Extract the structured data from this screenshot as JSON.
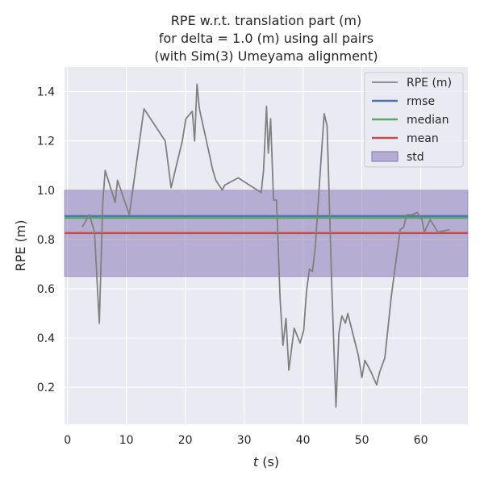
{
  "chart_data": {
    "type": "line",
    "title_lines": [
      "RPE w.r.t. translation part (m)",
      "for delta = 1.0 (m) using all pairs",
      "(with Sim(3) Umeyama alignment)"
    ],
    "xlabel_var": "t",
    "xlabel_unit": " (s)",
    "ylabel": "RPE (m)",
    "xlim": [
      -0.5,
      68
    ],
    "ylim": [
      0.05,
      1.5
    ],
    "xticks": [
      0,
      10,
      20,
      30,
      40,
      50,
      60
    ],
    "yticks": [
      0.2,
      0.4,
      0.6,
      0.8,
      1.0,
      1.2,
      1.4
    ],
    "ytick_labels": [
      "0.2",
      "0.4",
      "0.6",
      "0.8",
      "1.0",
      "1.2",
      "1.4"
    ],
    "grid": true,
    "legend_position": "top-right",
    "series": [
      {
        "name": "RPE (m)",
        "color": "#808080",
        "x": [
          2.5,
          3.7,
          4.6,
          5.4,
          6.0,
          6.4,
          8.1,
          8.5,
          10.5,
          13.0,
          16.6,
          17.6,
          19.5,
          20.1,
          21.2,
          21.6,
          22.0,
          22.4,
          24.7,
          25.2,
          26.3,
          26.7,
          29.0,
          32.9,
          33.3,
          33.8,
          34.1,
          34.5,
          35.0,
          35.5,
          36.1,
          36.6,
          37.1,
          37.6,
          38.5,
          39.5,
          40.1,
          40.6,
          41.1,
          41.6,
          42.1,
          43.0,
          43.6,
          44.1,
          44.9,
          45.6,
          46.1,
          46.6,
          47.2,
          47.6,
          49.4,
          50.0,
          50.5,
          51.6,
          52.5,
          53.0,
          53.9,
          55.0,
          56.5,
          57.1,
          57.6,
          58.5,
          59.4,
          60.2,
          60.6,
          61.6,
          62.9,
          64.9
        ],
        "y": [
          0.85,
          0.9,
          0.83,
          0.46,
          0.95,
          1.08,
          0.95,
          1.04,
          0.9,
          1.33,
          1.2,
          1.01,
          1.2,
          1.29,
          1.32,
          1.2,
          1.43,
          1.33,
          1.08,
          1.04,
          1.0,
          1.02,
          1.05,
          0.99,
          1.08,
          1.34,
          1.15,
          1.29,
          0.96,
          0.96,
          0.56,
          0.37,
          0.48,
          0.27,
          0.44,
          0.38,
          0.43,
          0.59,
          0.68,
          0.67,
          0.77,
          1.1,
          1.31,
          1.26,
          0.6,
          0.12,
          0.42,
          0.49,
          0.46,
          0.5,
          0.33,
          0.24,
          0.31,
          0.26,
          0.21,
          0.26,
          0.32,
          0.57,
          0.84,
          0.85,
          0.9,
          0.9,
          0.91,
          0.88,
          0.83,
          0.88,
          0.83,
          0.84
        ]
      }
    ],
    "stats": [
      {
        "name": "rmse",
        "value": 0.895,
        "color": "#4c72b0"
      },
      {
        "name": "median",
        "value": 0.888,
        "color": "#55a868"
      },
      {
        "name": "mean",
        "value": 0.826,
        "color": "#c44e52"
      }
    ],
    "std": {
      "name": "std",
      "low": 0.65,
      "high": 1.0,
      "color": "#8172b2"
    }
  }
}
